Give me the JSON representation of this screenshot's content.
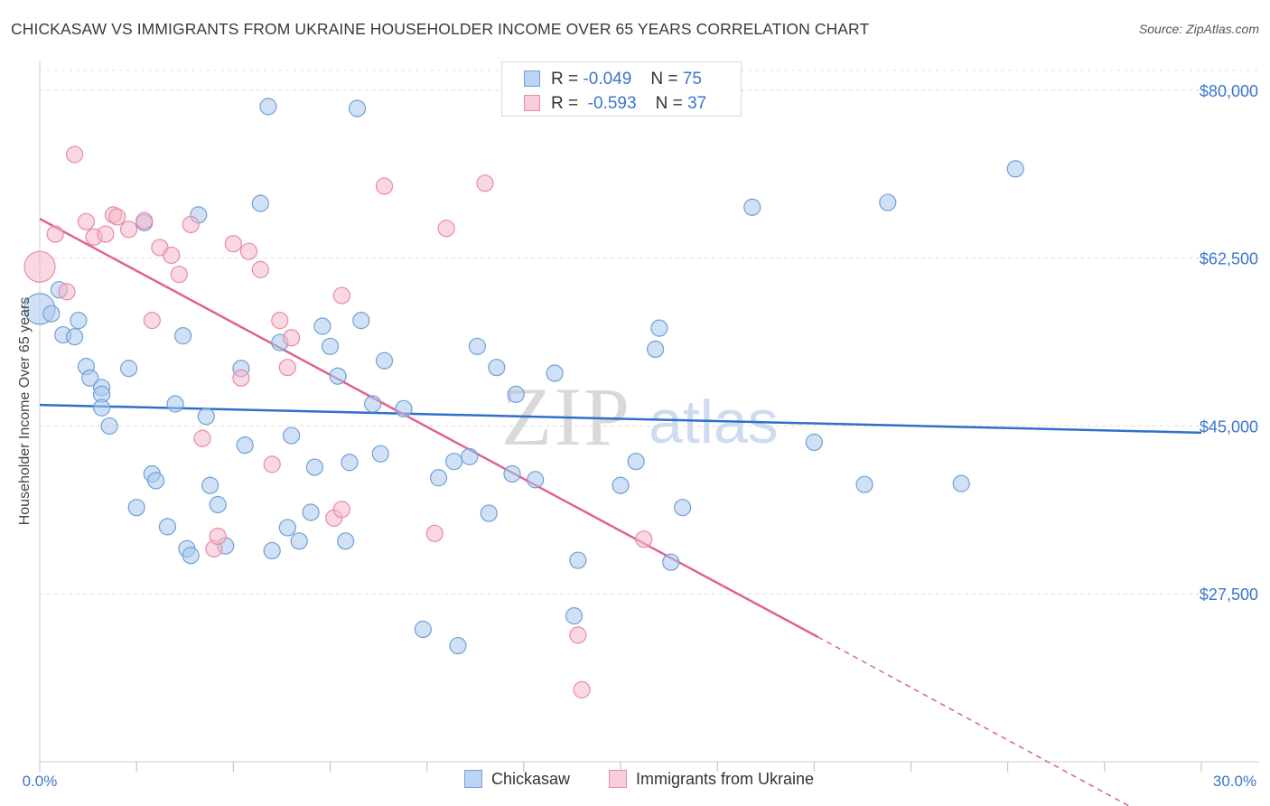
{
  "title": "CHICKASAW VS IMMIGRANTS FROM UKRAINE HOUSEHOLDER INCOME OVER 65 YEARS CORRELATION CHART",
  "source": "Source: ZipAtlas.com",
  "watermark": {
    "zip": "ZIP",
    "atlas": "atlas"
  },
  "legend": {
    "series1": {
      "r_label": "R =",
      "r_value": "-0.049",
      "n_label": "N =",
      "n_value": "75"
    },
    "series2": {
      "r_label": "R =",
      "r_value": "-0.593",
      "n_label": "N =",
      "n_value": "37"
    }
  },
  "bottom_legend": {
    "series1": "Chickasaw",
    "series2": "Immigrants from Ukraine"
  },
  "colors": {
    "blue_fill": "#a9c8ef",
    "blue_stroke": "#6f9fd8",
    "blue_line": "#2f6fcc",
    "pink_fill": "#f6b8c9",
    "pink_stroke": "#e88aa6",
    "pink_line": "#e0638e",
    "tick_text": "#3b76cc",
    "grid": "#dcdcdc"
  },
  "chart_data": {
    "type": "scatter",
    "title": "CHICKASAW VS IMMIGRANTS FROM UKRAINE HOUSEHOLDER INCOME OVER 65 YEARS CORRELATION CHART",
    "xlabel": "",
    "ylabel": "Householder Income Over 65 years",
    "xlim": [
      0,
      30
    ],
    "ylim": [
      10000,
      83000
    ],
    "x_tick_labels": [
      "0.0%",
      "30.0%"
    ],
    "y_ticks": [
      27500,
      45000,
      62500,
      80000
    ],
    "y_tick_labels": [
      "$27,500",
      "$45,000",
      "$62,500",
      "$80,000"
    ],
    "grid": true,
    "series": [
      {
        "name": "Chickasaw",
        "color": "blue",
        "r": -0.049,
        "n": 75,
        "trend": {
          "x0": 0,
          "y0": 47200,
          "x1": 30,
          "y1": 44300
        },
        "points": [
          [
            0.0,
            57200
          ],
          [
            0.3,
            56700
          ],
          [
            0.5,
            59200
          ],
          [
            0.6,
            54500
          ],
          [
            0.9,
            54300
          ],
          [
            1.0,
            56000
          ],
          [
            1.2,
            51200
          ],
          [
            1.3,
            50000
          ],
          [
            1.6,
            49000
          ],
          [
            1.6,
            48300
          ],
          [
            1.6,
            46900
          ],
          [
            1.8,
            45000
          ],
          [
            2.3,
            51000
          ],
          [
            2.5,
            36500
          ],
          [
            2.7,
            66200
          ],
          [
            2.9,
            40000
          ],
          [
            3.0,
            39300
          ],
          [
            3.3,
            34500
          ],
          [
            3.5,
            47300
          ],
          [
            3.7,
            54400
          ],
          [
            3.8,
            32200
          ],
          [
            3.9,
            31500
          ],
          [
            4.1,
            67000
          ],
          [
            4.3,
            46000
          ],
          [
            4.4,
            38800
          ],
          [
            4.6,
            36800
          ],
          [
            4.8,
            32500
          ],
          [
            5.2,
            51000
          ],
          [
            5.3,
            43000
          ],
          [
            5.7,
            68200
          ],
          [
            5.9,
            78300
          ],
          [
            6.0,
            32000
          ],
          [
            6.2,
            53700
          ],
          [
            6.4,
            34400
          ],
          [
            6.5,
            44000
          ],
          [
            6.7,
            33000
          ],
          [
            7.0,
            36000
          ],
          [
            7.1,
            40700
          ],
          [
            7.3,
            55400
          ],
          [
            7.5,
            53300
          ],
          [
            7.7,
            50200
          ],
          [
            7.9,
            33000
          ],
          [
            8.0,
            41200
          ],
          [
            8.2,
            78100
          ],
          [
            8.3,
            56000
          ],
          [
            8.6,
            47300
          ],
          [
            8.8,
            42100
          ],
          [
            8.9,
            51800
          ],
          [
            9.4,
            46800
          ],
          [
            9.9,
            23800
          ],
          [
            10.3,
            39600
          ],
          [
            10.7,
            41300
          ],
          [
            10.8,
            22100
          ],
          [
            11.1,
            41800
          ],
          [
            11.3,
            53300
          ],
          [
            11.6,
            35900
          ],
          [
            11.8,
            51100
          ],
          [
            12.2,
            40000
          ],
          [
            12.3,
            48300
          ],
          [
            12.8,
            39400
          ],
          [
            13.3,
            50500
          ],
          [
            13.8,
            25200
          ],
          [
            13.9,
            31000
          ],
          [
            15.0,
            38800
          ],
          [
            15.4,
            41300
          ],
          [
            15.9,
            53000
          ],
          [
            16.0,
            55200
          ],
          [
            16.3,
            30800
          ],
          [
            16.6,
            36500
          ],
          [
            18.4,
            67800
          ],
          [
            20.0,
            43300
          ],
          [
            21.3,
            38900
          ],
          [
            21.9,
            68300
          ],
          [
            23.8,
            39000
          ],
          [
            25.2,
            71800
          ]
        ]
      },
      {
        "name": "Immigrants from Ukraine",
        "color": "pink",
        "r": -0.593,
        "n": 37,
        "trend": {
          "x0": 0,
          "y0": 66600,
          "x1": 20.1,
          "y1": 23000,
          "dash_x1": 30,
          "dash_y1": 1300
        },
        "points": [
          [
            0.0,
            61600
          ],
          [
            0.4,
            65000
          ],
          [
            0.7,
            59000
          ],
          [
            0.9,
            73300
          ],
          [
            1.2,
            66300
          ],
          [
            1.4,
            64700
          ],
          [
            1.7,
            65000
          ],
          [
            1.9,
            67000
          ],
          [
            2.0,
            66800
          ],
          [
            2.3,
            65500
          ],
          [
            2.7,
            66400
          ],
          [
            2.9,
            56000
          ],
          [
            3.1,
            63600
          ],
          [
            3.4,
            62800
          ],
          [
            3.6,
            60800
          ],
          [
            3.9,
            66000
          ],
          [
            4.2,
            43700
          ],
          [
            4.5,
            32200
          ],
          [
            4.6,
            33500
          ],
          [
            5.0,
            64000
          ],
          [
            5.2,
            50000
          ],
          [
            5.4,
            63200
          ],
          [
            5.7,
            61300
          ],
          [
            6.0,
            41000
          ],
          [
            6.2,
            56000
          ],
          [
            6.4,
            51100
          ],
          [
            6.5,
            54200
          ],
          [
            7.6,
            35400
          ],
          [
            7.8,
            58600
          ],
          [
            7.8,
            36300
          ],
          [
            8.9,
            70000
          ],
          [
            10.2,
            33800
          ],
          [
            10.5,
            65600
          ],
          [
            11.5,
            70300
          ],
          [
            13.9,
            23200
          ],
          [
            14.0,
            17500
          ],
          [
            15.6,
            33200
          ]
        ]
      }
    ]
  }
}
